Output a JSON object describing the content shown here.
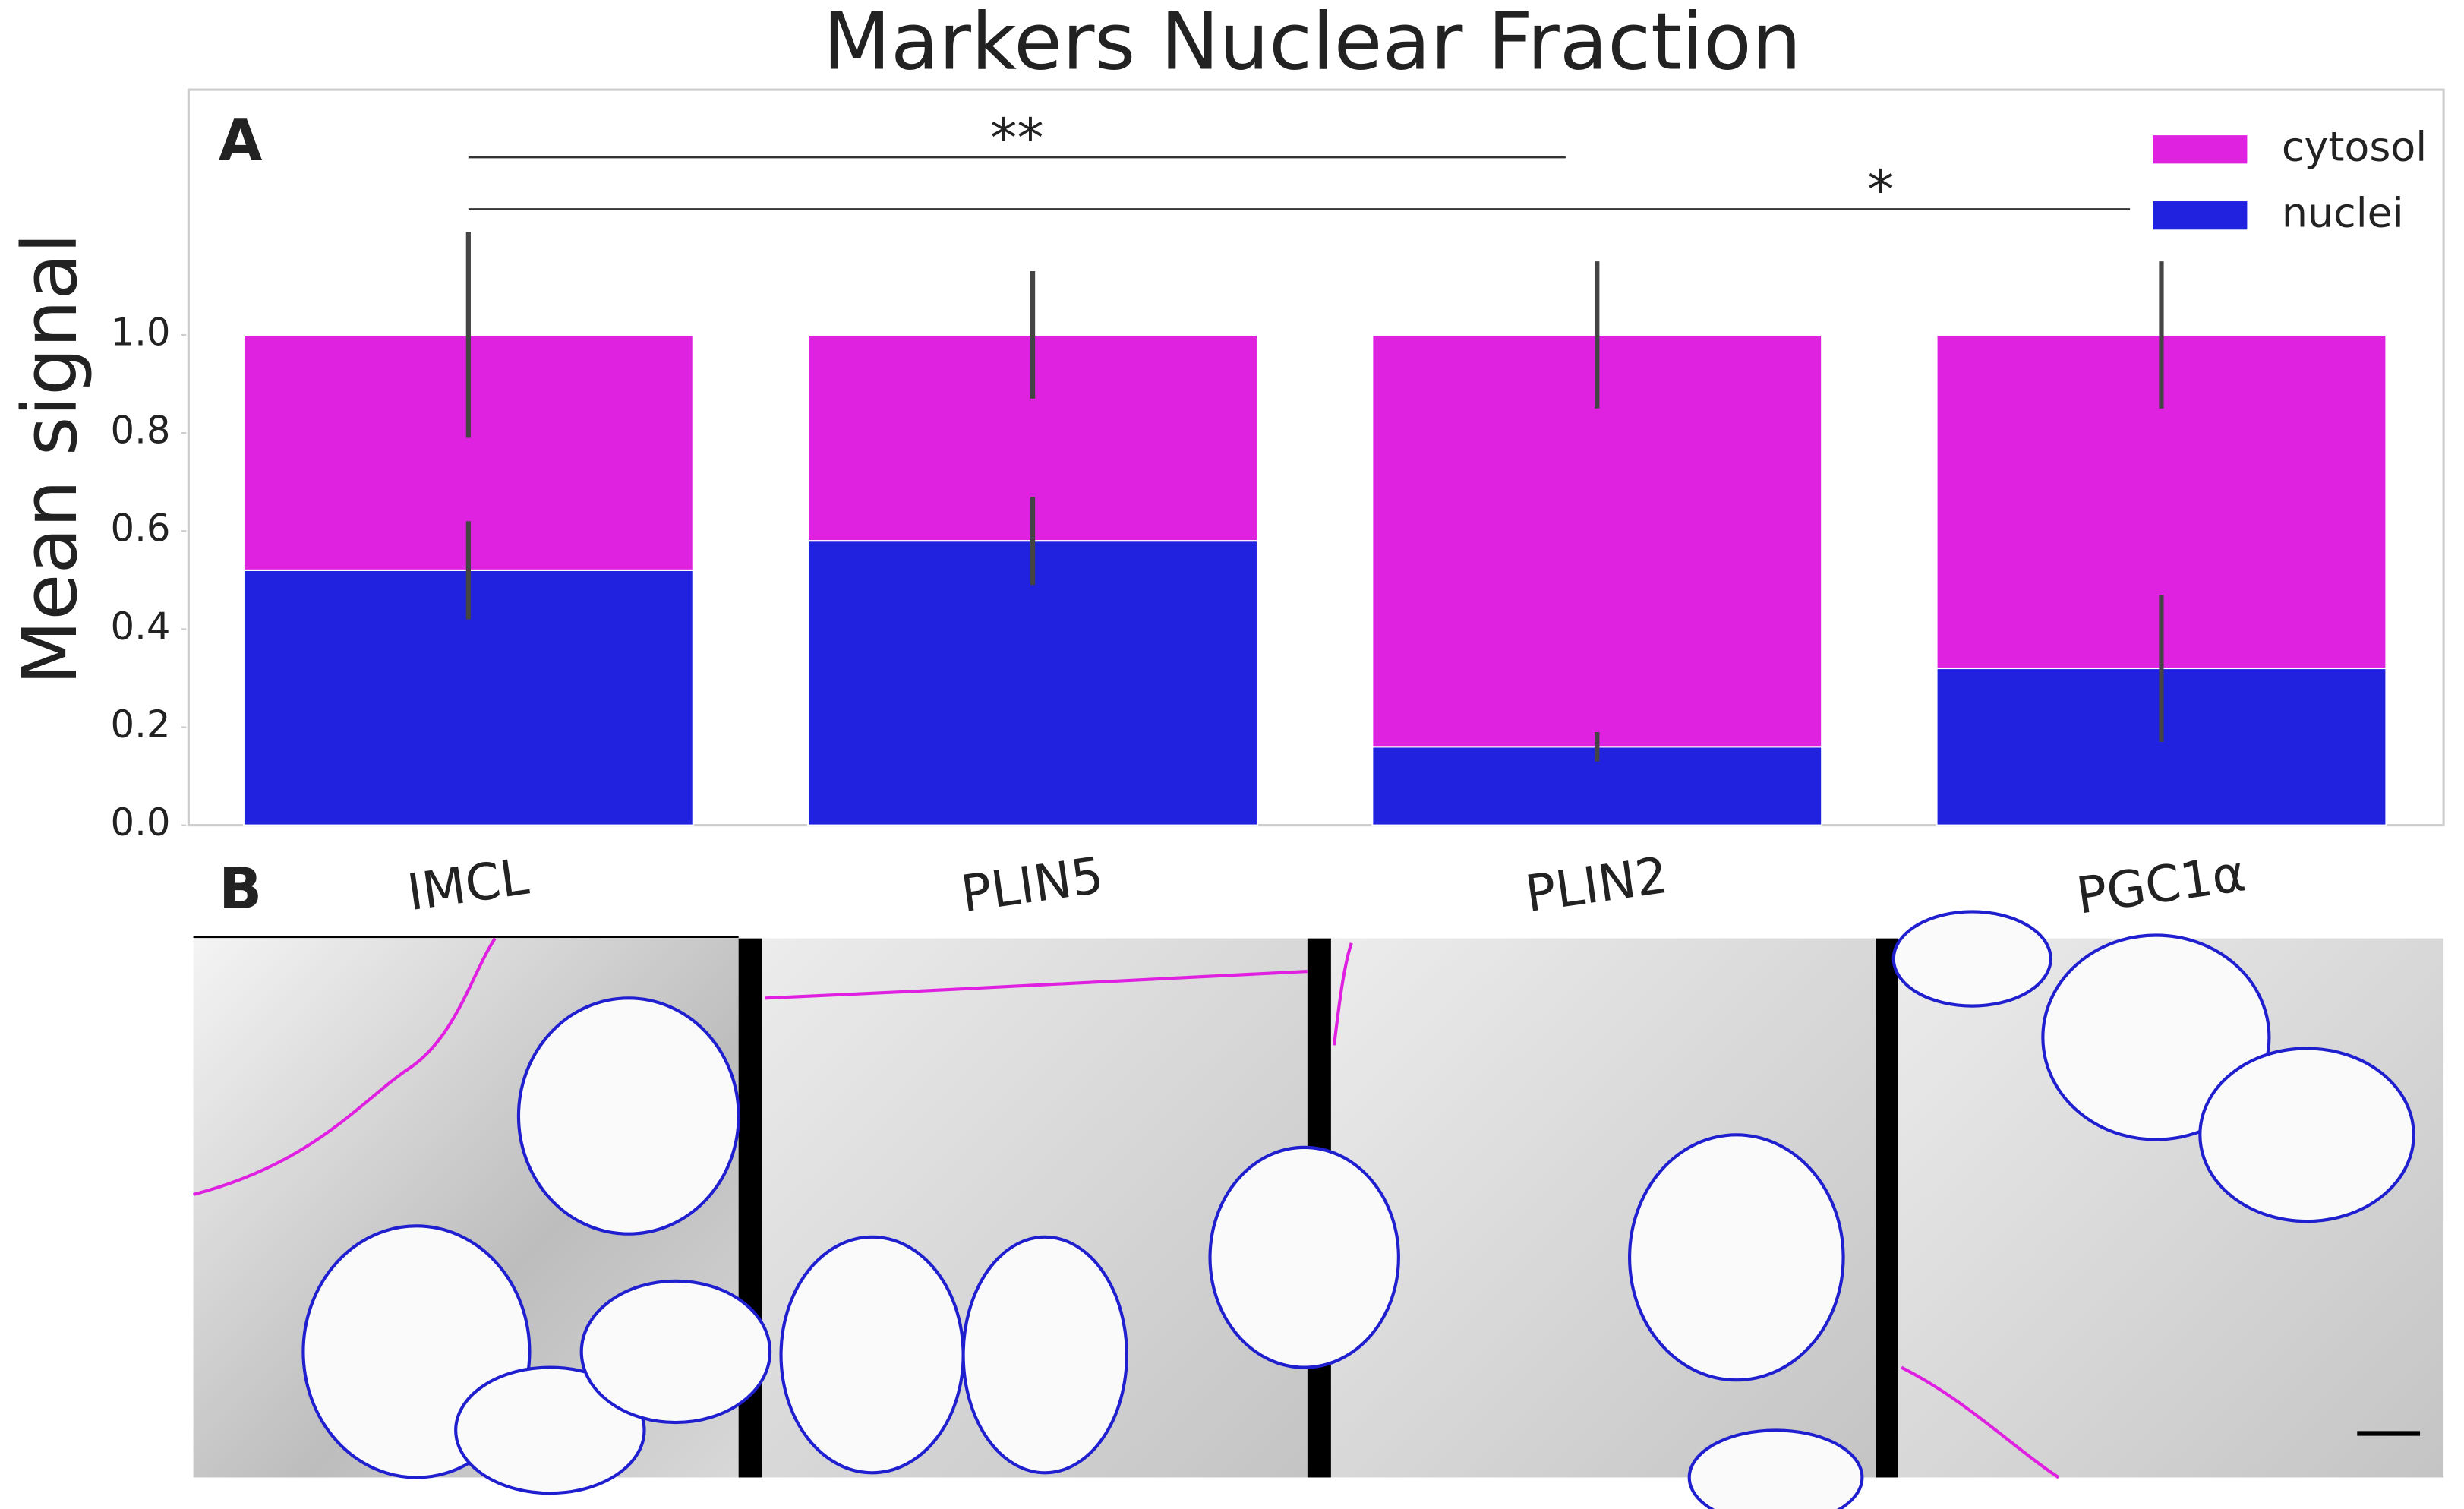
{
  "chart_data": {
    "type": "stacked_bar",
    "title": "Markers Nuclear Fraction",
    "y_label": "Mean signal",
    "panel_labels": [
      "A",
      "B"
    ],
    "categories": [
      "IMCL",
      "PLIN5",
      "PLIN2",
      "PGC1α"
    ],
    "series": [
      {
        "name": "nuclei",
        "color": "#2121e0",
        "values": [
          0.52,
          0.58,
          0.16,
          0.32
        ],
        "errors": [
          0.1,
          0.09,
          0.03,
          0.15
        ]
      },
      {
        "name": "cytosol",
        "color": "#df22df",
        "values": [
          0.48,
          0.42,
          0.84,
          0.68
        ],
        "errors": [
          0.21,
          0.13,
          0.15,
          0.15
        ]
      }
    ],
    "ylim": [
      0,
      1.5
    ],
    "yticks": [
      {
        "value": 0,
        "label": "0.0"
      },
      0.2,
      0.4,
      0.6,
      0.8,
      {
        "value": 1,
        "label": "1.0"
      }
    ],
    "annotations": [
      {
        "label": "**",
        "from": 0,
        "to": 2
      },
      {
        "label": "*",
        "from": 0,
        "to": 3
      }
    ],
    "legend": "upper right"
  }
}
